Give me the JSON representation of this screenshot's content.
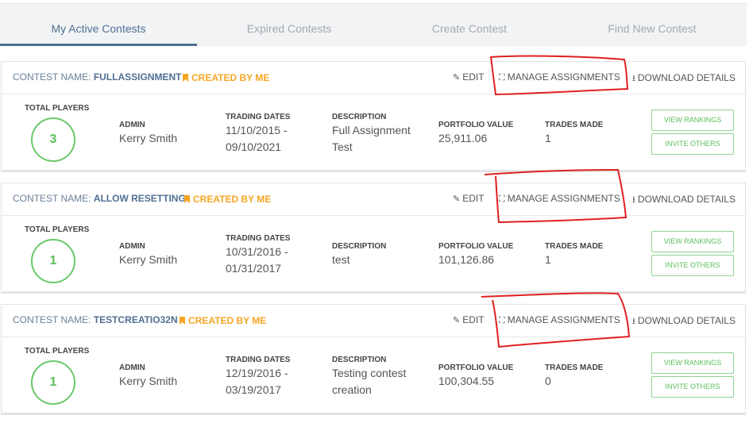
{
  "tabs": [
    {
      "label": "My Active Contests",
      "active": true
    },
    {
      "label": "Expired Contests",
      "active": false
    },
    {
      "label": "Create Contest",
      "active": false
    },
    {
      "label": "Find New Contest",
      "active": false
    }
  ],
  "labels": {
    "contest_name": "CONTEST NAME:",
    "created_by_me": "CREATED BY ME",
    "edit": "EDIT",
    "manage_assignments": "MANAGE ASSIGNMENTS",
    "download_details": "DOWNLOAD DETAILS",
    "total_players": "TOTAL PLAYERS",
    "admin": "ADMIN",
    "trading_dates": "TRADING DATES",
    "description": "DESCRIPTION",
    "portfolio_value": "PORTFOLIO VALUE",
    "trades_made": "TRADES MADE",
    "view_rankings": "VIEW RANKINGS",
    "invite_others": "INVITE OTHERS"
  },
  "contests": [
    {
      "name": "FULLASSIGNMENT",
      "players": "3",
      "admin": "Kerry Smith",
      "date_start": "11/10/2015 -",
      "date_end": "09/10/2021",
      "desc_line1": "Full Assignment",
      "desc_line2": "Test",
      "portfolio": "25,911.06",
      "trades": "1"
    },
    {
      "name": "ALLOW RESETTING",
      "players": "1",
      "admin": "Kerry Smith",
      "date_start": "10/31/2016 -",
      "date_end": "01/31/2017",
      "desc_line1": "test",
      "desc_line2": "",
      "portfolio": "101,126.86",
      "trades": "1"
    },
    {
      "name": "TESTCREATIO32N",
      "players": "1",
      "admin": "Kerry Smith",
      "date_start": "12/19/2016 -",
      "date_end": "03/19/2017",
      "desc_line1": "Testing contest",
      "desc_line2": "creation",
      "portfolio": "100,304.55",
      "trades": "0"
    }
  ],
  "colors": {
    "accent": "#4f6f93",
    "created": "#f6a623",
    "green": "#5bbf5b",
    "annotation": "#e02020"
  }
}
